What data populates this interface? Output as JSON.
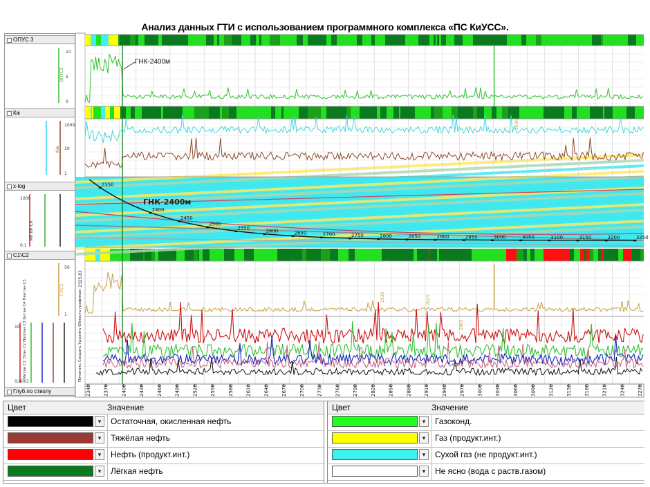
{
  "title": "Анализ данных ГТИ с использованием программного комплекса «ПС КиУСС».",
  "tracks": [
    {
      "name": "ОПУС 3",
      "curve": "ОПУС3"
    },
    {
      "name": "Кж",
      "curve": "Кж"
    },
    {
      "name": "x-log",
      "curve": "Wh Bh Ch"
    },
    {
      "name": "C1\\C2",
      "curve": "C1\\C2"
    },
    {
      "name": "",
      "curve": "Метан С1 Этан С2 Пропан С3 Бутан С4 Пентан С5"
    },
    {
      "name": "Глуб.по стволу",
      "curve": ""
    }
  ],
  "annotations": {
    "gnk_small": "ГНК-2400м",
    "gnk_large": "ГНК-2400м",
    "side_controls": "Печатать  Создать  Удалить  Область графиков",
    "side_value": "2325,82",
    "small_marks": [
      "3036",
      "2836",
      "2925",
      "2965"
    ],
    "axis_values": {
      "opus": [
        "10",
        "5",
        "0"
      ],
      "kzh": [
        "1000",
        "10",
        "1"
      ],
      "xlog": [
        "1000",
        "0,1"
      ],
      "c1c2": [
        "50",
        "1"
      ],
      "gas": [
        "10",
        "0,0001"
      ]
    }
  },
  "trajectory_labels": [
    "2350",
    "2400",
    "2450",
    "2500",
    "2550",
    "2600",
    "2650",
    "2700",
    "2750",
    "2800",
    "2850",
    "2900",
    "2950",
    "3000",
    "3050",
    "3100",
    "3150",
    "3200",
    "3250"
  ],
  "depth_ticks": [
    "2340",
    "2370",
    "2400",
    "2430",
    "2460",
    "2490",
    "2520",
    "2550",
    "2580",
    "2610",
    "2640",
    "2670",
    "2700",
    "2730",
    "2760",
    "2790",
    "2820",
    "2850",
    "2880",
    "2910",
    "2940",
    "2970",
    "3000",
    "3030",
    "3060",
    "3090",
    "3120",
    "3150",
    "3180",
    "3210",
    "3240",
    "3270"
  ],
  "legend": {
    "col_color": "Цвет",
    "col_value": "Значение",
    "left": [
      {
        "color": "#000000",
        "label": "Остаточная, окисленная нефть"
      },
      {
        "color": "#9b3a32",
        "label": "Тяжёлая нефть"
      },
      {
        "color": "#ff0000",
        "label": "Нефть (продукт.инт.)"
      },
      {
        "color": "#0a7a1e",
        "label": "Лёгкая нефть"
      }
    ],
    "right": [
      {
        "color": "#20ff20",
        "label": "Газоконд."
      },
      {
        "color": "#ffff00",
        "label": "Газ (продукт.инт.)"
      },
      {
        "color": "#40f0f0",
        "label": "Сухой газ (не продукт.инт.)"
      },
      {
        "color": "#ffffff",
        "label": "Не ясно (вода с раств.газом)"
      }
    ]
  },
  "colors": {
    "green": "#20d020",
    "dark_green": "#0a7a1e",
    "cyan": "#40e0e8",
    "brown": "#8b4a2a",
    "tan": "#c8a040",
    "red": "#cc1010",
    "blue": "#1010c0"
  }
}
